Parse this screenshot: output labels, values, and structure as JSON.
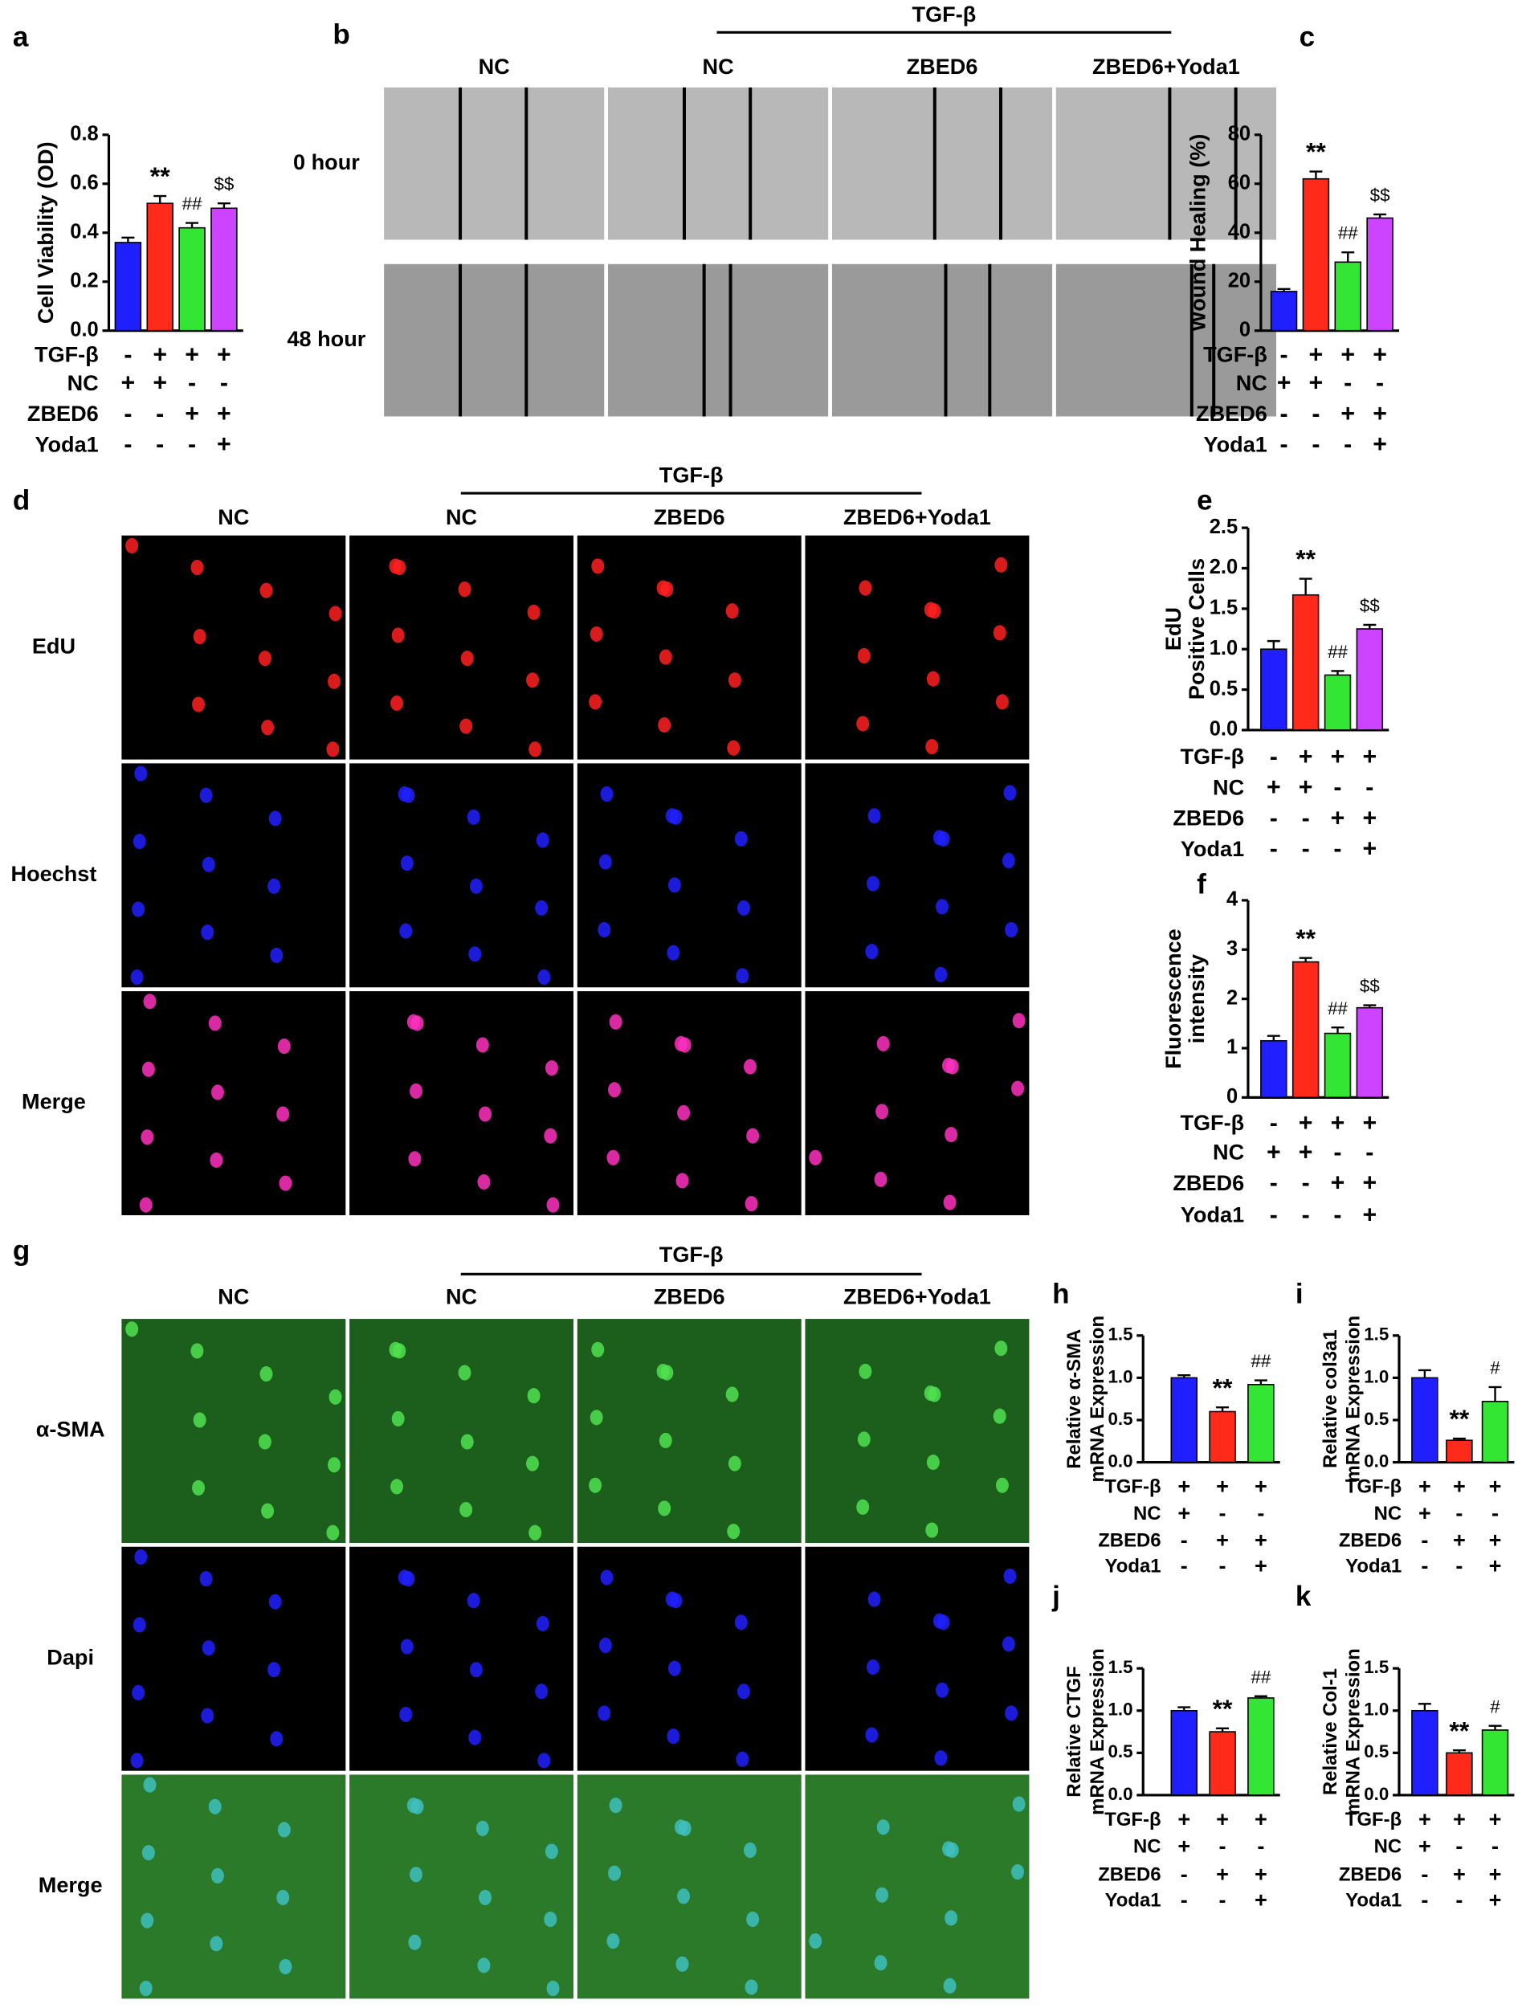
{
  "chart_data": [
    {
      "type": "bar",
      "panel": "a",
      "ylabel": [
        "Cell Viability (OD)"
      ],
      "ylim": [
        0,
        0.8
      ],
      "yticks": [
        {
          "value": 0,
          "label": "0.0"
        },
        0.2,
        0.4,
        0.6,
        0.8
      ],
      "values": [
        0.36,
        0.52,
        0.42,
        0.5
      ],
      "errors": [
        0.02,
        0.03,
        0.02,
        0.02
      ],
      "colors": [
        "#1f1fff",
        "#ff2a1a",
        "#33e633",
        "#cc44ff"
      ],
      "markers": [
        null,
        "**",
        "##",
        "$$"
      ],
      "conditions": [
        {
          "name": "TGF-β",
          "signs": [
            "-",
            "+",
            "+",
            "+"
          ]
        },
        {
          "name": "NC",
          "signs": [
            "+",
            "+",
            "-",
            "-"
          ]
        },
        {
          "name": "ZBED6",
          "signs": [
            "-",
            "-",
            "+",
            "+"
          ]
        },
        {
          "name": "Yoda1",
          "signs": [
            "-",
            "-",
            "-",
            "+"
          ]
        }
      ]
    },
    {
      "type": "bar",
      "panel": "c",
      "ylabel": [
        "Wound Healing (%)"
      ],
      "ylim": [
        0,
        80
      ],
      "yticks": [
        0,
        20,
        40,
        60,
        80
      ],
      "values": [
        16,
        62,
        28,
        46
      ],
      "errors": [
        1,
        3,
        4,
        1.5
      ],
      "colors": [
        "#1f1fff",
        "#ff2a1a",
        "#33e633",
        "#cc44ff"
      ],
      "markers": [
        null,
        "**",
        "##",
        "$$"
      ],
      "conditions": [
        {
          "name": "TGF-β",
          "signs": [
            "-",
            "+",
            "+",
            "+"
          ]
        },
        {
          "name": "NC",
          "signs": [
            "+",
            "+",
            "-",
            "-"
          ]
        },
        {
          "name": "ZBED6",
          "signs": [
            "-",
            "-",
            "+",
            "+"
          ]
        },
        {
          "name": "Yoda1",
          "signs": [
            "-",
            "-",
            "-",
            "+"
          ]
        }
      ]
    },
    {
      "type": "bar",
      "panel": "e",
      "ylabel": [
        "EdU",
        "Positive Cells"
      ],
      "ylim": [
        0,
        2.5
      ],
      "yticks": [
        {
          "value": 0,
          "label": "0.0"
        },
        0.5,
        {
          "value": 1,
          "label": "1.0"
        },
        1.5,
        {
          "value": 2,
          "label": "2.0"
        },
        2.5
      ],
      "values": [
        1.0,
        1.67,
        0.68,
        1.25
      ],
      "errors": [
        0.1,
        0.2,
        0.05,
        0.05
      ],
      "colors": [
        "#1f1fff",
        "#ff2a1a",
        "#33e633",
        "#cc44ff"
      ],
      "markers": [
        null,
        "**",
        "##",
        "$$"
      ],
      "conditions": [
        {
          "name": "TGF-β",
          "signs": [
            "-",
            "+",
            "+",
            "+"
          ]
        },
        {
          "name": "NC",
          "signs": [
            "+",
            "+",
            "-",
            "-"
          ]
        },
        {
          "name": "ZBED6",
          "signs": [
            "-",
            "-",
            "+",
            "+"
          ]
        },
        {
          "name": "Yoda1",
          "signs": [
            "-",
            "-",
            "-",
            "+"
          ]
        }
      ]
    },
    {
      "type": "bar",
      "panel": "f",
      "ylabel": [
        "Fluorescence",
        "intensity"
      ],
      "ylim": [
        0,
        4
      ],
      "yticks": [
        0,
        1,
        2,
        3,
        4
      ],
      "values": [
        1.15,
        2.75,
        1.3,
        1.82
      ],
      "errors": [
        0.1,
        0.08,
        0.12,
        0.05
      ],
      "colors": [
        "#1f1fff",
        "#ff2a1a",
        "#33e633",
        "#cc44ff"
      ],
      "markers": [
        null,
        "**",
        "##",
        "$$"
      ],
      "conditions": [
        {
          "name": "TGF-β",
          "signs": [
            "-",
            "+",
            "+",
            "+"
          ]
        },
        {
          "name": "NC",
          "signs": [
            "+",
            "+",
            "-",
            "-"
          ]
        },
        {
          "name": "ZBED6",
          "signs": [
            "-",
            "-",
            "+",
            "+"
          ]
        },
        {
          "name": "Yoda1",
          "signs": [
            "-",
            "-",
            "-",
            "+"
          ]
        }
      ]
    },
    {
      "type": "bar",
      "panel": "h",
      "ylabel": [
        "Relative α-SMA",
        "mRNA Expression"
      ],
      "ylim": [
        0,
        1.5
      ],
      "yticks": [
        {
          "value": 0,
          "label": "0.0"
        },
        0.5,
        {
          "value": 1,
          "label": "1.0"
        },
        1.5
      ],
      "values": [
        1.0,
        0.6,
        0.92
      ],
      "errors": [
        0.03,
        0.05,
        0.05
      ],
      "colors": [
        "#1f1fff",
        "#ff2a1a",
        "#33e633"
      ],
      "markers": [
        null,
        "**",
        "##"
      ],
      "conditions": [
        {
          "name": "TGF-β",
          "signs": [
            "+",
            "+",
            "+"
          ]
        },
        {
          "name": "NC",
          "signs": [
            "+",
            "-",
            "-"
          ]
        },
        {
          "name": "ZBED6",
          "signs": [
            "-",
            "+",
            "+"
          ]
        },
        {
          "name": "Yoda1",
          "signs": [
            "-",
            "-",
            "+"
          ]
        }
      ]
    },
    {
      "type": "bar",
      "panel": "i",
      "ylabel": [
        "Relative col3a1",
        "mRNA Expression"
      ],
      "ylim": [
        0,
        1.5
      ],
      "yticks": [
        {
          "value": 0,
          "label": "0.0"
        },
        0.5,
        {
          "value": 1,
          "label": "1.0"
        },
        1.5
      ],
      "values": [
        1.0,
        0.26,
        0.72
      ],
      "errors": [
        0.09,
        0.02,
        0.17
      ],
      "colors": [
        "#1f1fff",
        "#ff2a1a",
        "#33e633"
      ],
      "markers": [
        null,
        "**",
        "#"
      ],
      "conditions": [
        {
          "name": "TGF-β",
          "signs": [
            "+",
            "+",
            "+"
          ]
        },
        {
          "name": "NC",
          "signs": [
            "+",
            "-",
            "-"
          ]
        },
        {
          "name": "ZBED6",
          "signs": [
            "-",
            "+",
            "+"
          ]
        },
        {
          "name": "Yoda1",
          "signs": [
            "-",
            "-",
            "+"
          ]
        }
      ]
    },
    {
      "type": "bar",
      "panel": "j",
      "ylabel": [
        "Relative CTGF",
        "mRNA Expression"
      ],
      "ylim": [
        0,
        1.5
      ],
      "yticks": [
        {
          "value": 0,
          "label": "0.0"
        },
        0.5,
        {
          "value": 1,
          "label": "1.0"
        },
        1.5
      ],
      "values": [
        1.0,
        0.75,
        1.15
      ],
      "errors": [
        0.04,
        0.04,
        0.02
      ],
      "colors": [
        "#1f1fff",
        "#ff2a1a",
        "#33e633"
      ],
      "markers": [
        null,
        "**",
        "##"
      ],
      "conditions": [
        {
          "name": "TGF-β",
          "signs": [
            "+",
            "+",
            "+"
          ]
        },
        {
          "name": "NC",
          "signs": [
            "+",
            "-",
            "-"
          ]
        },
        {
          "name": "ZBED6",
          "signs": [
            "-",
            "+",
            "+"
          ]
        },
        {
          "name": "Yoda1",
          "signs": [
            "-",
            "-",
            "+"
          ]
        }
      ]
    },
    {
      "type": "bar",
      "panel": "k",
      "ylabel": [
        "Relative Col-1",
        "mRNA Expression"
      ],
      "ylim": [
        0,
        1.5
      ],
      "yticks": [
        {
          "value": 0,
          "label": "0.0"
        },
        0.5,
        {
          "value": 1,
          "label": "1.0"
        },
        1.5
      ],
      "values": [
        1.0,
        0.5,
        0.77
      ],
      "errors": [
        0.08,
        0.03,
        0.05
      ],
      "colors": [
        "#1f1fff",
        "#ff2a1a",
        "#33e633"
      ],
      "markers": [
        null,
        "**",
        "#"
      ],
      "conditions": [
        {
          "name": "TGF-β",
          "signs": [
            "+",
            "+",
            "+"
          ]
        },
        {
          "name": "NC",
          "signs": [
            "+",
            "-",
            "-"
          ]
        },
        {
          "name": "ZBED6",
          "signs": [
            "-",
            "+",
            "+"
          ]
        },
        {
          "name": "Yoda1",
          "signs": [
            "-",
            "-",
            "+"
          ]
        }
      ]
    }
  ],
  "figure": {
    "panel_b": {
      "letter": "b",
      "group": "TGF-β",
      "columns": [
        "NC",
        "NC",
        "ZBED6",
        "ZBED6+Yoda1"
      ],
      "rows": [
        "0 hour",
        "48 hour"
      ]
    },
    "panel_d": {
      "letter": "d",
      "group": "TGF-β",
      "columns": [
        "NC",
        "NC",
        "ZBED6",
        "ZBED6+Yoda1"
      ],
      "rows": [
        "EdU",
        "Hoechst",
        "Merge"
      ]
    },
    "panel_g": {
      "letter": "g",
      "group": "TGF-β",
      "columns": [
        "NC",
        "NC",
        "ZBED6",
        "ZBED6+Yoda1"
      ],
      "rows": [
        "α-SMA",
        "Dapi",
        "Merge"
      ]
    }
  }
}
